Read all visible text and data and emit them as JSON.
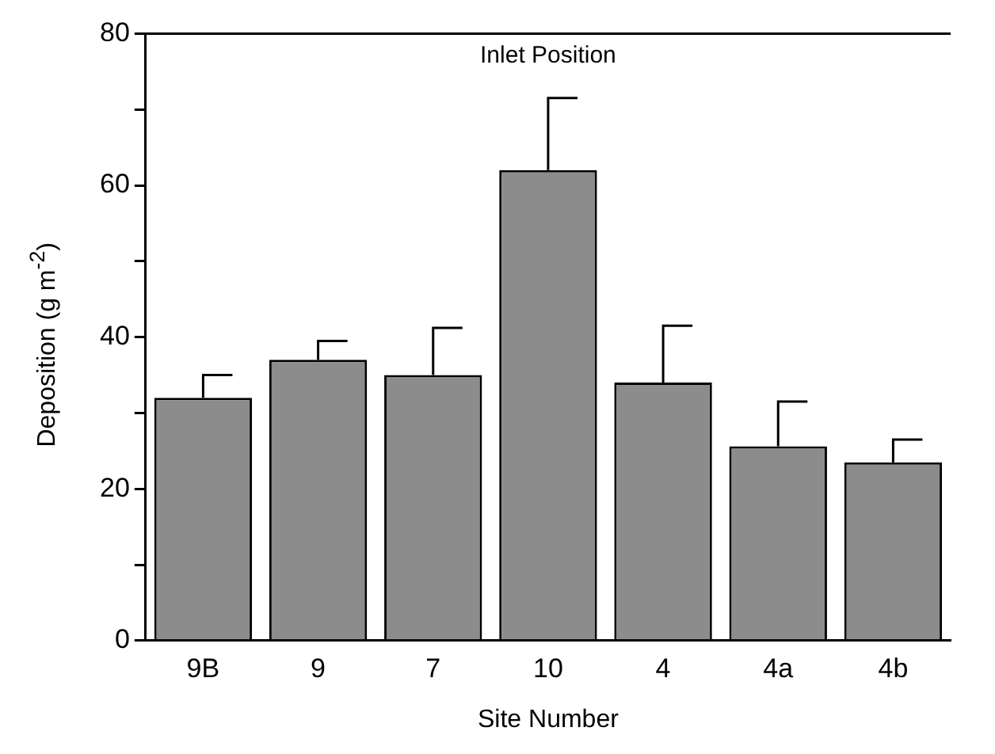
{
  "chart_data": {
    "type": "bar",
    "xlabel": "Site Number",
    "ylabel": "Deposition (g m$^{-2}$)",
    "categories": [
      "9B",
      "9",
      "7",
      "10",
      "4",
      "4a",
      "4b"
    ],
    "values": [
      32,
      37,
      35,
      62,
      34,
      25.6,
      23.5
    ],
    "errors": [
      3,
      2.5,
      6.2,
      9.5,
      7.5,
      5.9,
      3
    ],
    "color": "#8c8c8c",
    "annotations": [
      "Inlet Position"
    ],
    "ylim": [
      0,
      80
    ],
    "yticks": [
      0,
      {
        "value": 10,
        "label": null
      },
      20,
      {
        "value": 30,
        "label": null
      },
      40,
      {
        "value": 50,
        "label": null
      },
      60,
      {
        "value": 70,
        "label": null
      },
      80
    ],
    "grid": false,
    "legend": false
  }
}
